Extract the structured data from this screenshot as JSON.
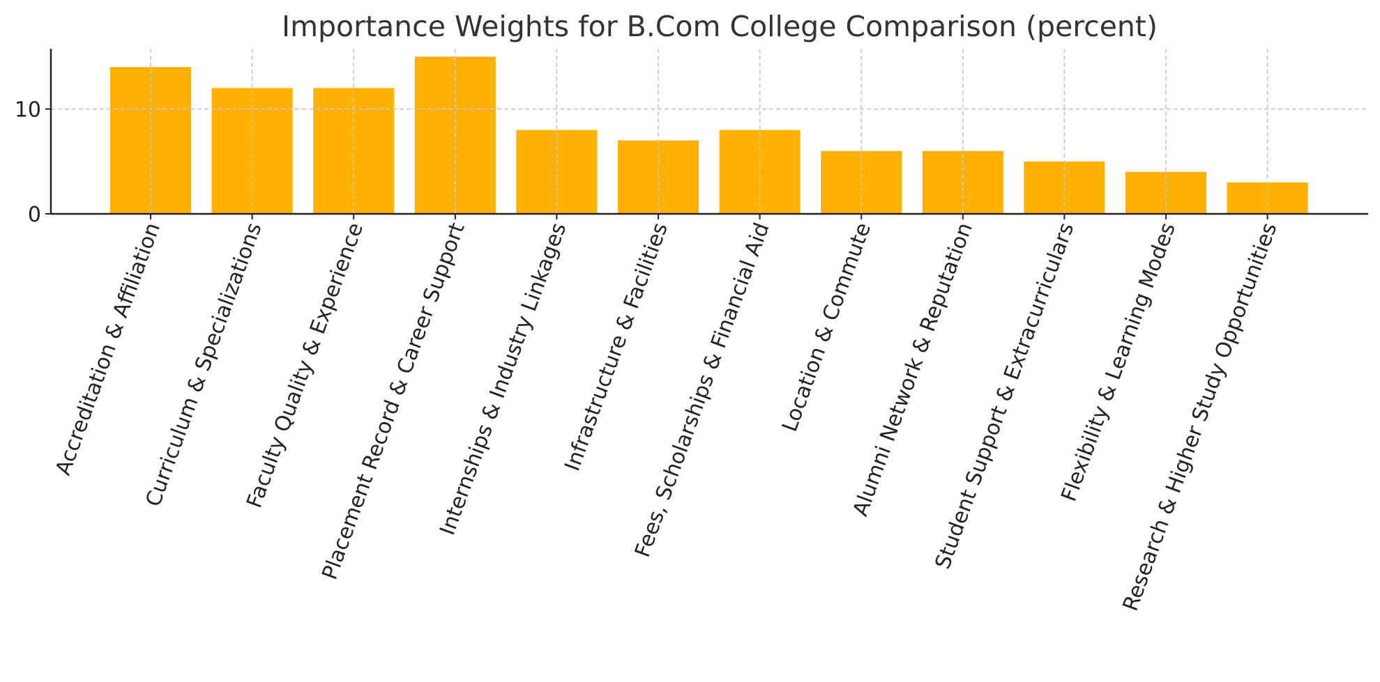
{
  "chart_data": {
    "type": "bar",
    "title": "Importance Weights for B.Com College Comparison (percent)",
    "xlabel": "",
    "ylabel": "",
    "categories": [
      "Accreditation & Affiliation",
      "Curriculum & Specializations",
      "Faculty Quality & Experience",
      "Placement Record & Career Support",
      "Internships & Industry Linkages",
      "Infrastructure & Facilities",
      "Fees, Scholarships & Financial Aid",
      "Location & Commute",
      "Alumni Network & Reputation",
      "Student Support & Extracurriculars",
      "Flexibility & Learning Modes",
      "Research & Higher Study Opportunities"
    ],
    "values": [
      14,
      12,
      12,
      15,
      8,
      7,
      8,
      6,
      6,
      5,
      4,
      3
    ],
    "ylim": [
      0,
      15.75
    ],
    "yticks": [
      0,
      10
    ],
    "grid": true,
    "bar_color": "#ffb000",
    "grid_color": "#c8c8c8",
    "axis_color": "#222222"
  }
}
